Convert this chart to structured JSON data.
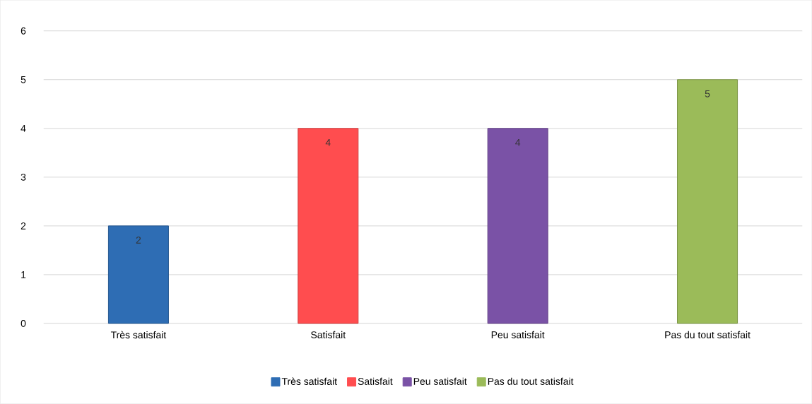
{
  "chart_data": {
    "type": "bar",
    "categories": [
      "Très satisfait",
      "Satisfait",
      "Peu satisfait",
      "Pas du tout satisfait"
    ],
    "series": [
      {
        "name": "Très satisfait",
        "color": "#2e6db4",
        "values": [
          2,
          null,
          null,
          null
        ]
      },
      {
        "name": "Satisfait",
        "color": "#ff4d4f",
        "values": [
          null,
          4,
          null,
          null
        ]
      },
      {
        "name": "Peu satisfait",
        "color": "#7a52a6",
        "values": [
          null,
          null,
          4,
          null
        ]
      },
      {
        "name": "Pas du tout satisfait",
        "color": "#9bbb59",
        "values": [
          null,
          null,
          null,
          5
        ]
      }
    ],
    "ylim": [
      0,
      6
    ],
    "yticks": [
      0,
      1,
      2,
      3,
      4,
      5,
      6
    ],
    "grid": "y",
    "legend": "bottom",
    "data_labels": true
  }
}
